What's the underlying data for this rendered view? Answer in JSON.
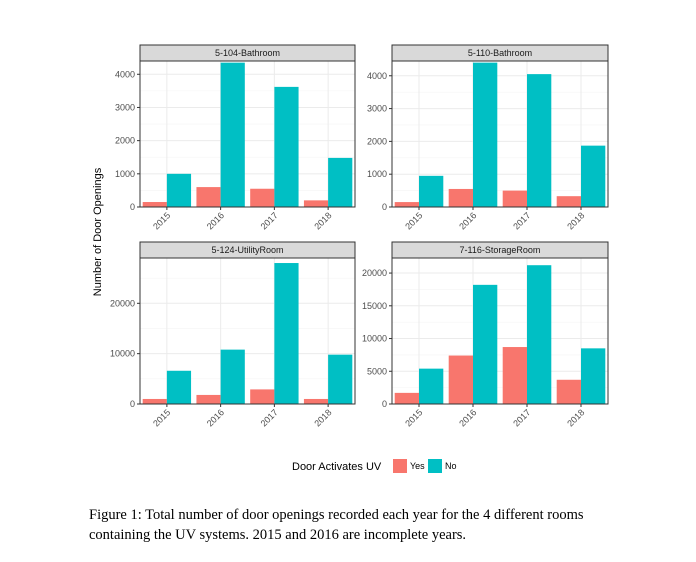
{
  "chart_data": {
    "type": "bar",
    "ylabel": "Number of Door Openings",
    "categories": [
      "2015",
      "2016",
      "2017",
      "2018"
    ],
    "legend": {
      "title": "Door Activates UV",
      "placement": "bottom",
      "entries": [
        {
          "name": "Yes",
          "color": "#F8766D"
        },
        {
          "name": "No",
          "color": "#00BFC4"
        }
      ]
    },
    "panels": [
      {
        "title": "5-104-Bathroom",
        "ylim": [
          0,
          4400
        ],
        "yticks": [
          0,
          1000,
          2000,
          3000,
          4000
        ],
        "series": [
          {
            "name": "Yes",
            "values": [
              150,
              600,
              550,
              200
            ]
          },
          {
            "name": "No",
            "values": [
              1000,
              4350,
              3620,
              1480
            ]
          }
        ]
      },
      {
        "title": "5-110-Bathroom",
        "ylim": [
          0,
          4450
        ],
        "yticks": [
          0,
          1000,
          2000,
          3000,
          4000
        ],
        "series": [
          {
            "name": "Yes",
            "values": [
              150,
              550,
              500,
              330
            ]
          },
          {
            "name": "No",
            "values": [
              950,
              4400,
              4050,
              1870
            ]
          }
        ]
      },
      {
        "title": "5-124-UtilityRoom",
        "ylim": [
          0,
          29000
        ],
        "yticks": [
          0,
          10000,
          20000
        ],
        "series": [
          {
            "name": "Yes",
            "values": [
              1000,
              1800,
              2900,
              1000
            ]
          },
          {
            "name": "No",
            "values": [
              6600,
              10800,
              28000,
              9800
            ]
          }
        ]
      },
      {
        "title": "7-116-StorageRoom",
        "ylim": [
          0,
          22300
        ],
        "yticks": [
          0,
          5000,
          10000,
          15000,
          20000
        ],
        "series": [
          {
            "name": "Yes",
            "values": [
              1700,
              7400,
              8700,
              3700
            ]
          },
          {
            "name": "No",
            "values": [
              5400,
              18200,
              21200,
              8500
            ]
          }
        ]
      }
    ],
    "grid": true
  },
  "caption": "Figure 1: Total number of door openings recorded each year for the 4 different rooms containing the UV systems. 2015 and 2016 are incomplete years."
}
